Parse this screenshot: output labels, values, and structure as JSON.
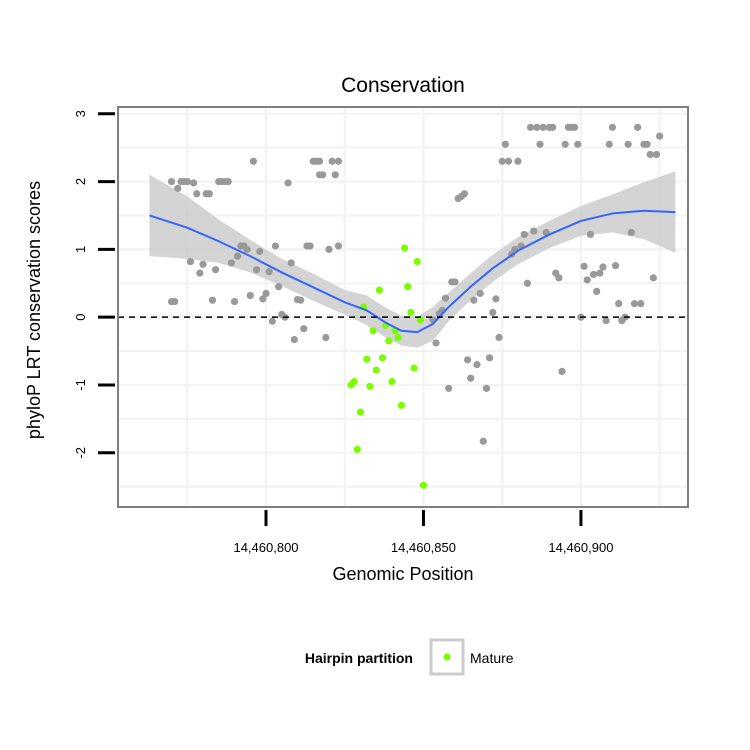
{
  "chart_data": {
    "type": "scatter",
    "title": "Conservation",
    "xlabel": "Genomic Position",
    "ylabel": "phyloP LRT conservation scores",
    "xlim": [
      14460753,
      14460934
    ],
    "ylim": [
      -2.8,
      3.1
    ],
    "x_ticks": [
      14460800,
      14460850,
      14460900
    ],
    "x_tick_labels": [
      "14,460,800",
      "14,460,850",
      "14,460,900"
    ],
    "y_ticks": [
      -2,
      -1,
      0,
      1,
      2,
      3
    ],
    "y_tick_labels": [
      "-2",
      "-1",
      "0",
      "1",
      "2",
      "3"
    ],
    "grid": true,
    "reference_line": {
      "y": 0,
      "style": "dashed"
    },
    "legend": {
      "title": "Hairpin partition",
      "placement": "bottom",
      "entries": [
        {
          "label": "Mature",
          "color": "#7cfc00"
        }
      ]
    },
    "colors": {
      "other_points": "#999999",
      "mature_points": "#7cfc00",
      "smooth_line": "#3366ff",
      "ribbon": "#cccccc",
      "panel_border": "#7f7f7f",
      "grid": "#f2f2f2"
    },
    "series": [
      {
        "points": [
          [
            14460770,
            2.0
          ],
          [
            14460770,
            0.23
          ],
          [
            14460771,
            0.23
          ],
          [
            14460772,
            1.9
          ],
          [
            14460773,
            2.0
          ],
          [
            14460774,
            2.0
          ],
          [
            14460775,
            2.0
          ],
          [
            14460776,
            0.82
          ],
          [
            14460777,
            1.98
          ],
          [
            14460778,
            1.82
          ],
          [
            14460779,
            0.65
          ],
          [
            14460780,
            0.78
          ],
          [
            14460781,
            1.82
          ],
          [
            14460782,
            1.82
          ],
          [
            14460783,
            0.25
          ],
          [
            14460784,
            0.7
          ],
          [
            14460785,
            2.0
          ],
          [
            14460786,
            2.0
          ],
          [
            14460787,
            2.0
          ],
          [
            14460788,
            2.0
          ],
          [
            14460789,
            0.8
          ],
          [
            14460790,
            0.23
          ],
          [
            14460791,
            0.9
          ],
          [
            14460792,
            1.05
          ],
          [
            14460793,
            1.05
          ],
          [
            14460794,
            1.0
          ],
          [
            14460795,
            0.32
          ],
          [
            14460796,
            2.3
          ],
          [
            14460797,
            0.7
          ],
          [
            14460798,
            0.97
          ],
          [
            14460799,
            0.27
          ],
          [
            14460800,
            0.35
          ],
          [
            14460801,
            0.67
          ],
          [
            14460802,
            -0.06
          ],
          [
            14460803,
            1.05
          ],
          [
            14460804,
            0.45
          ],
          [
            14460805,
            0.04
          ],
          [
            14460806,
            0.0
          ],
          [
            14460807,
            1.98
          ],
          [
            14460808,
            0.8
          ],
          [
            14460809,
            -0.33
          ],
          [
            14460810,
            0.26
          ],
          [
            14460811,
            0.25
          ],
          [
            14460812,
            -0.17
          ],
          [
            14460813,
            1.05
          ],
          [
            14460814,
            1.05
          ],
          [
            14460815,
            2.3
          ],
          [
            14460816,
            2.3
          ],
          [
            14460817,
            2.3
          ],
          [
            14460817,
            2.1
          ],
          [
            14460818,
            2.1
          ],
          [
            14460819,
            -0.3
          ],
          [
            14460820,
            1.0
          ],
          [
            14460821,
            2.3
          ],
          [
            14460822,
            2.1
          ],
          [
            14460823,
            2.3
          ],
          [
            14460823,
            1.05
          ],
          [
            14460853,
            -0.04
          ],
          [
            14460854,
            -0.38
          ],
          [
            14460855,
            0.05
          ],
          [
            14460856,
            0.1
          ],
          [
            14460857,
            0.28
          ],
          [
            14460858,
            -1.05
          ],
          [
            14460859,
            0.52
          ],
          [
            14460860,
            0.52
          ],
          [
            14460861,
            1.75
          ],
          [
            14460862,
            1.78
          ],
          [
            14460863,
            1.82
          ],
          [
            14460864,
            -0.63
          ],
          [
            14460865,
            -0.9
          ],
          [
            14460866,
            0.25
          ],
          [
            14460867,
            -0.7
          ],
          [
            14460868,
            0.35
          ],
          [
            14460869,
            -1.83
          ],
          [
            14460870,
            -1.05
          ],
          [
            14460871,
            -0.6
          ],
          [
            14460872,
            0.07
          ],
          [
            14460873,
            0.27
          ],
          [
            14460874,
            -0.3
          ],
          [
            14460875,
            2.3
          ],
          [
            14460876,
            2.55
          ],
          [
            14460877,
            2.3
          ],
          [
            14460878,
            0.93
          ],
          [
            14460879,
            1.0
          ],
          [
            14460880,
            2.3
          ],
          [
            14460881,
            1.05
          ],
          [
            14460882,
            1.22
          ],
          [
            14460883,
            0.5
          ],
          [
            14460884,
            2.8
          ],
          [
            14460885,
            1.27
          ],
          [
            14460886,
            2.8
          ],
          [
            14460887,
            2.55
          ],
          [
            14460888,
            2.8
          ],
          [
            14460889,
            1.25
          ],
          [
            14460890,
            2.8
          ],
          [
            14460891,
            2.8
          ],
          [
            14460892,
            0.65
          ],
          [
            14460893,
            0.58
          ],
          [
            14460894,
            -0.8
          ],
          [
            14460895,
            2.55
          ],
          [
            14460896,
            2.8
          ],
          [
            14460897,
            2.8
          ],
          [
            14460898,
            2.8
          ],
          [
            14460899,
            2.55
          ],
          [
            14460900,
            0.0
          ],
          [
            14460901,
            0.75
          ],
          [
            14460902,
            0.55
          ],
          [
            14460903,
            1.22
          ],
          [
            14460904,
            0.63
          ],
          [
            14460905,
            0.38
          ],
          [
            14460906,
            0.65
          ],
          [
            14460907,
            0.74
          ],
          [
            14460908,
            -0.05
          ],
          [
            14460909,
            2.55
          ],
          [
            14460910,
            2.8
          ],
          [
            14460911,
            0.76
          ],
          [
            14460912,
            0.2
          ],
          [
            14460913,
            -0.05
          ],
          [
            14460914,
            0.0
          ],
          [
            14460915,
            2.55
          ],
          [
            14460916,
            1.25
          ],
          [
            14460917,
            0.2
          ],
          [
            14460918,
            2.8
          ],
          [
            14460919,
            0.2
          ],
          [
            14460920,
            2.55
          ],
          [
            14460921,
            2.55
          ],
          [
            14460922,
            2.4
          ],
          [
            14460923,
            0.58
          ],
          [
            14460924,
            2.4
          ],
          [
            14460925,
            2.67
          ]
        ]
      },
      {
        "name": "Mature",
        "points": [
          [
            14460827,
            -1.0
          ],
          [
            14460828,
            -0.95
          ],
          [
            14460829,
            -1.95
          ],
          [
            14460830,
            -1.4
          ],
          [
            14460831,
            0.15
          ],
          [
            14460832,
            -0.62
          ],
          [
            14460833,
            -1.02
          ],
          [
            14460834,
            -0.2
          ],
          [
            14460835,
            -0.78
          ],
          [
            14460836,
            0.4
          ],
          [
            14460837,
            -0.6
          ],
          [
            14460838,
            -0.12
          ],
          [
            14460839,
            -0.35
          ],
          [
            14460840,
            -0.95
          ],
          [
            14460841,
            -0.2
          ],
          [
            14460842,
            -0.3
          ],
          [
            14460843,
            -1.3
          ],
          [
            14460844,
            1.02
          ],
          [
            14460845,
            0.45
          ],
          [
            14460846,
            0.07
          ],
          [
            14460847,
            -0.75
          ],
          [
            14460848,
            0.82
          ],
          [
            14460849,
            -0.04
          ],
          [
            14460850,
            -2.48
          ]
        ]
      }
    ],
    "smooth": {
      "x": [
        14460763,
        14460775,
        14460785,
        14460795,
        14460805,
        14460815,
        14460825,
        14460832,
        14460838,
        14460843,
        14460848,
        14460853,
        14460858,
        14460865,
        14460872,
        14460880,
        14460890,
        14460900,
        14460910,
        14460920,
        14460930
      ],
      "y": [
        1.5,
        1.32,
        1.12,
        0.9,
        0.66,
        0.44,
        0.22,
        0.1,
        -0.08,
        -0.2,
        -0.22,
        -0.1,
        0.15,
        0.45,
        0.72,
        0.98,
        1.22,
        1.42,
        1.53,
        1.57,
        1.55
      ],
      "lower": [
        0.9,
        0.86,
        0.8,
        0.66,
        0.46,
        0.24,
        0.04,
        -0.12,
        -0.3,
        -0.42,
        -0.45,
        -0.35,
        -0.06,
        0.25,
        0.52,
        0.78,
        1.02,
        1.2,
        1.25,
        1.15,
        0.95
      ],
      "upper": [
        2.1,
        1.78,
        1.44,
        1.14,
        0.86,
        0.64,
        0.4,
        0.32,
        0.14,
        0.02,
        0.01,
        0.15,
        0.36,
        0.65,
        0.92,
        1.18,
        1.42,
        1.64,
        1.81,
        1.99,
        2.15
      ]
    }
  }
}
